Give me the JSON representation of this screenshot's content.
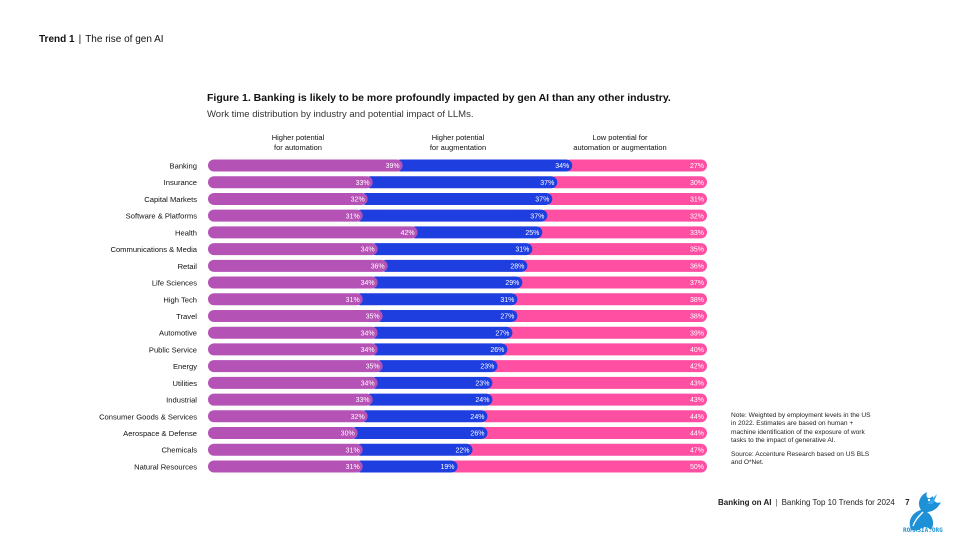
{
  "header": {
    "trend_label": "Trend 1",
    "trend_title": "The rise of gen AI"
  },
  "figure": {
    "title": "Figure 1. Banking is likely to be more profoundly impacted by gen AI than any other industry.",
    "subtitle": "Work time distribution by industry and potential impact of LLMs."
  },
  "columns": {
    "automation": [
      "Higher potential",
      "for automation"
    ],
    "augmentation": [
      "Higher potential",
      "for augmentation"
    ],
    "low": [
      "Low potential for",
      "automation or augmentation"
    ]
  },
  "chart_data": {
    "type": "bar",
    "orientation": "horizontal",
    "stacked": true,
    "normalized_to": 100,
    "categories": [
      "Banking",
      "Insurance",
      "Capital Markets",
      "Software & Platforms",
      "Health",
      "Communications & Media",
      "Retail",
      "Life Sciences",
      "High Tech",
      "Travel",
      "Automotive",
      "Public Service",
      "Energy",
      "Utilities",
      "Industrial",
      "Consumer Goods & Services",
      "Aerospace & Defense",
      "Chemicals",
      "Natural Resources"
    ],
    "series": [
      {
        "name": "Higher potential for automation",
        "color": "#b552b6",
        "values": [
          39,
          33,
          32,
          31,
          42,
          34,
          36,
          34,
          31,
          35,
          34,
          34,
          35,
          34,
          33,
          32,
          30,
          31,
          31
        ]
      },
      {
        "name": "Higher potential for augmentation",
        "color": "#1f3ee0",
        "values": [
          34,
          37,
          37,
          37,
          25,
          31,
          28,
          29,
          31,
          27,
          27,
          26,
          23,
          23,
          24,
          24,
          26,
          22,
          19
        ]
      },
      {
        "name": "Low potential for automation or augmentation",
        "color": "#ff4fa3",
        "values": [
          27,
          30,
          31,
          32,
          33,
          35,
          36,
          37,
          38,
          38,
          39,
          40,
          42,
          43,
          43,
          44,
          44,
          47,
          50
        ]
      }
    ],
    "value_suffix": "%",
    "xlim": [
      0,
      100
    ]
  },
  "note": {
    "text": "Note: Weighted by employment levels in the US in 2022. Estimates are based on human + machine identification of the exposure of work tasks to the impact of generative AI.",
    "source": "Source: Accenture Research based on US BLS and O*Net."
  },
  "footer": {
    "brand": "Banking on AI",
    "title": "Banking Top 10 Trends for 2024",
    "page": "7"
  },
  "logo": {
    "text": "ROMASIA.ORG",
    "icon": "dragon-icon"
  }
}
